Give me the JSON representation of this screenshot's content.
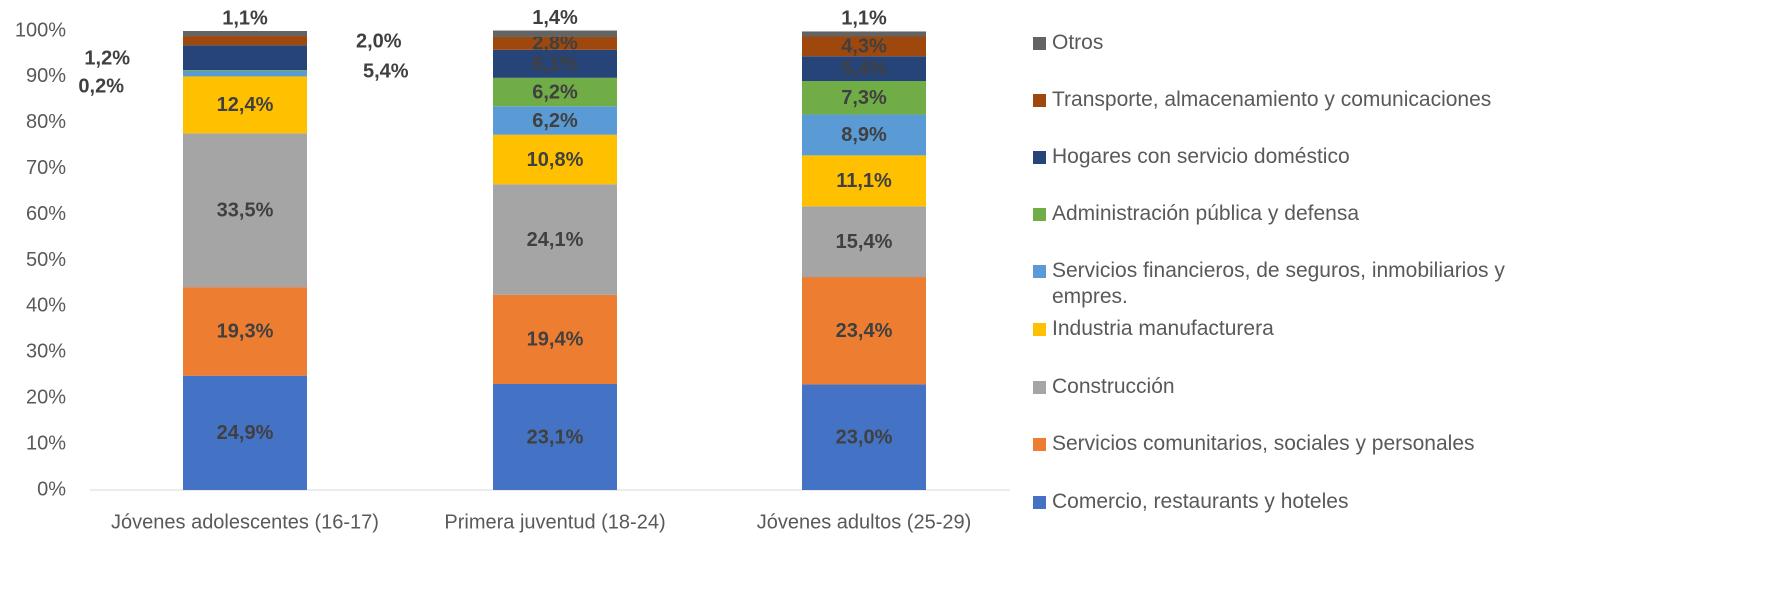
{
  "chart_data": {
    "type": "stacked_bar",
    "categories": [
      "Jóvenes adolescentes (16-17)",
      "Primera juventud (18-24)",
      "Jóvenes adultos (25-29)"
    ],
    "series": [
      {
        "name": "Comercio, restaurants y hoteles",
        "color": "#4472c4",
        "values": [
          24.9,
          23.1,
          23.0
        ],
        "value_labels": [
          "24,9%",
          "23,1%",
          "23,0%"
        ]
      },
      {
        "name": "Servicios comunitarios, sociales y personales",
        "color": "#ed7d31",
        "values": [
          19.3,
          19.4,
          23.4
        ],
        "value_labels": [
          "19,3%",
          "19,4%",
          "23,4%"
        ]
      },
      {
        "name": "Construcción",
        "color": "#a5a5a5",
        "values": [
          33.5,
          24.1,
          15.4
        ],
        "value_labels": [
          "33,5%",
          "24,1%",
          "15,4%"
        ]
      },
      {
        "name": "Industria manufacturera",
        "color": "#ffc000",
        "values": [
          12.4,
          10.8,
          11.1
        ],
        "value_labels": [
          "12,4%",
          "10,8%",
          "11,1%"
        ]
      },
      {
        "name": "Servicios financieros, de seguros, inmobiliarios y empres.",
        "color": "#5b9bd5",
        "values": [
          1.2,
          6.2,
          8.9
        ],
        "value_labels": [
          "1,2%",
          "6,2%",
          "8,9%"
        ]
      },
      {
        "name": "Administración pública y defensa",
        "color": "#70ad47",
        "values": [
          0.2,
          6.2,
          7.3
        ],
        "value_labels": [
          "0,2%",
          "6,2%",
          "7,3%"
        ]
      },
      {
        "name": "Hogares con servicio doméstico",
        "color": "#264478",
        "values": [
          5.4,
          6.1,
          5.4
        ],
        "value_labels": [
          "5,4%",
          "6,1%",
          "5,4%"
        ]
      },
      {
        "name": "Transporte, almacenamiento y comunicaciones",
        "color": "#9e480e",
        "values": [
          2.0,
          2.8,
          4.3
        ],
        "value_labels": [
          "2,0%",
          "2,8%",
          "4,3%"
        ]
      },
      {
        "name": "Otros",
        "color": "#636363",
        "values": [
          1.1,
          1.4,
          1.1
        ],
        "value_labels": [
          "1,1%",
          "1,4%",
          "1,1%"
        ]
      }
    ],
    "ylim": [
      0,
      100
    ],
    "yticks": [
      {
        "value": 0,
        "label": "0%"
      },
      {
        "value": 10,
        "label": "10%"
      },
      {
        "value": 20,
        "label": "20%"
      },
      {
        "value": 30,
        "label": "30%"
      },
      {
        "value": 40,
        "label": "40%"
      },
      {
        "value": 50,
        "label": "50%"
      },
      {
        "value": 60,
        "label": "60%"
      },
      {
        "value": 70,
        "label": "70%"
      },
      {
        "value": 80,
        "label": "80%"
      },
      {
        "value": 90,
        "label": "90%"
      },
      {
        "value": 100,
        "label": "100%"
      }
    ],
    "legend": "right"
  }
}
